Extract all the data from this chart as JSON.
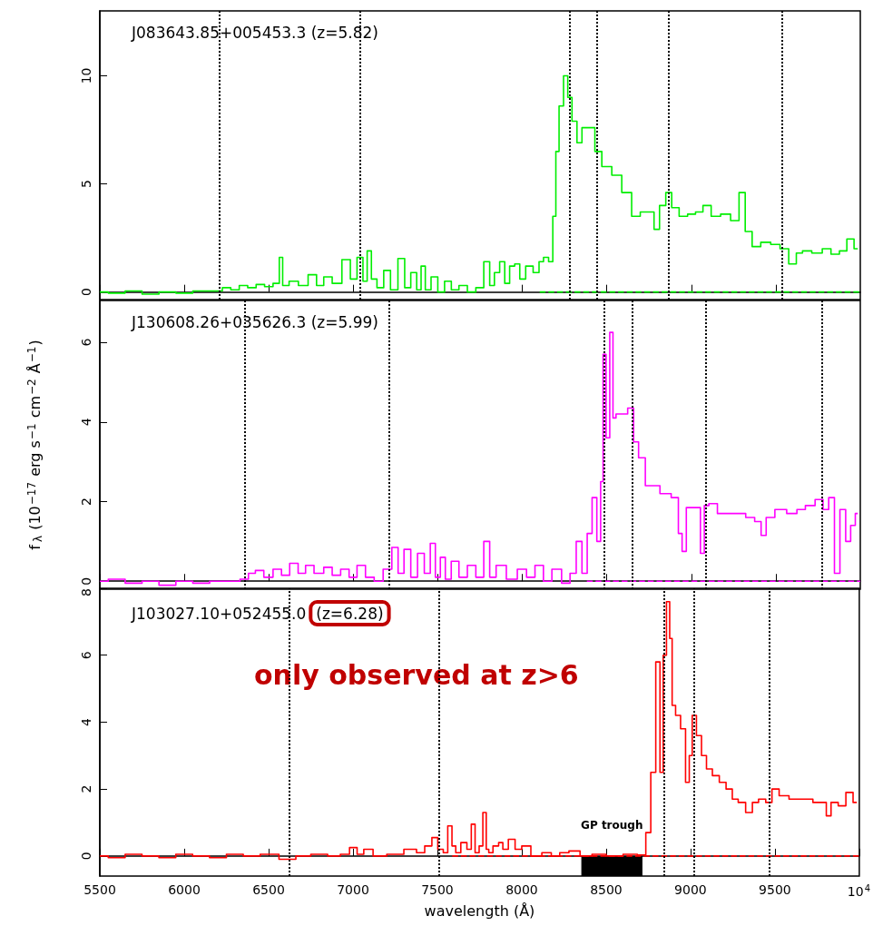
{
  "chart_data": [
    {
      "type": "step",
      "title": "J083643.85+005453.3 (z=5.82)",
      "xlim": [
        5500,
        10000
      ],
      "xticks": [
        5500,
        6000,
        6500,
        7000,
        7500,
        8000,
        8500,
        9000,
        9500
      ],
      "ylim": [
        -0.35,
        13
      ],
      "yticks": [
        0,
        5,
        10
      ],
      "tick_labels": "y",
      "series": [
        {
          "color": "#00ee00",
          "x": [
            5500,
            5600,
            5700,
            5800,
            5900,
            6000,
            6100,
            6200,
            6250,
            6300,
            6350,
            6400,
            6450,
            6500,
            6550,
            6574,
            6590,
            6650,
            6700,
            6765,
            6800,
            6850,
            6900,
            6965,
            7000,
            7044,
            7070,
            7094,
            7120,
            7160,
            7200,
            7240,
            7288,
            7320,
            7360,
            7390,
            7412,
            7440,
            7480,
            7520,
            7560,
            7600,
            7650,
            7700,
            7750,
            7794,
            7820,
            7850,
            7882,
            7910,
            7940,
            7970,
            8000,
            8040,
            8088,
            8110,
            8141,
            8170,
            8191,
            8206,
            8229,
            8259,
            8279,
            8309,
            8338,
            8368,
            8418,
            8441,
            8500,
            8559,
            8618,
            8676,
            8720,
            8765,
            8794,
            8830,
            8868,
            8900,
            8956,
            9000,
            9050,
            9088,
            9147,
            9200,
            9265,
            9300,
            9338,
            9382,
            9440,
            9500,
            9550,
            9603,
            9640,
            9676,
            9750,
            9800,
            9853,
            9900,
            9941,
            9985
          ],
          "values": [
            0.0,
            -0.05,
            0.05,
            -0.1,
            0.0,
            -0.05,
            0.05,
            0.05,
            0.2,
            0.1,
            0.3,
            0.2,
            0.35,
            0.25,
            0.4,
            1.6,
            0.3,
            0.5,
            0.3,
            0.8,
            0.3,
            0.7,
            0.4,
            1.5,
            0.6,
            1.6,
            0.5,
            1.9,
            0.6,
            0.2,
            1.0,
            0.1,
            1.55,
            0.2,
            0.9,
            0.1,
            1.2,
            0.1,
            0.7,
            0.0,
            0.5,
            0.1,
            0.3,
            0.0,
            0.2,
            1.4,
            0.3,
            0.9,
            1.4,
            0.4,
            1.2,
            1.3,
            0.6,
            1.2,
            0.9,
            1.4,
            1.6,
            1.4,
            3.5,
            6.5,
            8.6,
            10.0,
            9.0,
            7.9,
            6.9,
            7.6,
            7.6,
            6.5,
            5.8,
            5.4,
            4.6,
            3.5,
            3.7,
            3.7,
            2.9,
            4.0,
            4.6,
            3.9,
            3.5,
            3.6,
            3.7,
            4.0,
            3.5,
            3.6,
            3.3,
            4.6,
            2.8,
            2.1,
            2.3,
            2.2,
            2.0,
            1.3,
            1.8,
            1.9,
            1.8,
            2.0,
            1.75,
            1.9,
            2.45,
            2.0
          ]
        },
        {
          "type": "line",
          "color": "#00ee00",
          "line_style": "dashed",
          "x": [
            8103,
            10000
          ],
          "values": [
            0,
            0
          ]
        }
      ],
      "ref_lines": [
        {
          "axis": "x",
          "value": 6206,
          "label": null,
          "color": "#000000",
          "line_style": "dotted"
        },
        {
          "axis": "x",
          "value": 7038,
          "label": null,
          "color": "#000000",
          "line_style": "dotted"
        },
        {
          "axis": "x",
          "value": 8282,
          "label": null,
          "color": "#000000",
          "line_style": "dotted"
        },
        {
          "axis": "x",
          "value": 8444,
          "label": null,
          "color": "#000000",
          "line_style": "dotted"
        },
        {
          "axis": "x",
          "value": 8868,
          "label": null,
          "color": "#000000",
          "line_style": "dotted"
        },
        {
          "axis": "x",
          "value": 9535,
          "label": null,
          "color": "#000000",
          "line_style": "dotted"
        }
      ]
    },
    {
      "type": "step",
      "title": "J130608.26+035626.3 (z=5.99)",
      "ylabel": "f$_{λ}$ (10$^{−17}$ erg s$^{−1}$ cm$^{−2}$ Å$^{−1}$)",
      "xlim": [
        5500,
        10000
      ],
      "xticks": [
        5500,
        6000,
        6500,
        7000,
        7500,
        8000,
        8500,
        9000,
        9500
      ],
      "ylim": [
        -0.2,
        7.05
      ],
      "yticks": [
        0,
        2,
        4,
        6
      ],
      "tick_labels": "y",
      "series": [
        {
          "color": "#ff00ff",
          "x": [
            5500,
            5600,
            5700,
            5800,
            5900,
            6000,
            6100,
            6200,
            6300,
            6359,
            6400,
            6441,
            6500,
            6550,
            6600,
            6647,
            6700,
            6735,
            6800,
            6850,
            6900,
            6950,
            7000,
            7044,
            7100,
            7147,
            7206,
            7250,
            7280,
            7320,
            7360,
            7400,
            7440,
            7471,
            7500,
            7530,
            7559,
            7600,
            7650,
            7700,
            7750,
            7794,
            7820,
            7870,
            7941,
            8000,
            8050,
            8100,
            8150,
            8200,
            8265,
            8300,
            8338,
            8368,
            8400,
            8426,
            8456,
            8471,
            8485,
            8506,
            8529,
            8544,
            8565,
            8600,
            8647,
            8670,
            8706,
            8750,
            8779,
            8850,
            8912,
            8935,
            8956,
            8985,
            9044,
            9064,
            9090,
            9118,
            9191,
            9250,
            9294,
            9350,
            9400,
            9426,
            9460,
            9529,
            9600,
            9650,
            9700,
            9765,
            9794,
            9832,
            9862,
            9897,
            9930,
            9956,
            9985
          ],
          "values": [
            0.0,
            0.05,
            -0.05,
            0.0,
            -0.1,
            0.0,
            -0.05,
            0.0,
            0.0,
            0.05,
            0.2,
            0.27,
            0.1,
            0.3,
            0.15,
            0.45,
            0.2,
            0.4,
            0.2,
            0.35,
            0.15,
            0.3,
            0.1,
            0.4,
            0.1,
            0.0,
            0.3,
            0.85,
            0.2,
            0.8,
            0.1,
            0.7,
            0.2,
            0.95,
            0.1,
            0.6,
            0.05,
            0.5,
            0.1,
            0.4,
            0.1,
            1.0,
            0.1,
            0.4,
            0.05,
            0.3,
            0.1,
            0.4,
            0.0,
            0.3,
            -0.05,
            0.2,
            1.0,
            0.2,
            1.2,
            2.1,
            1.0,
            2.5,
            5.7,
            3.6,
            6.25,
            4.1,
            4.2,
            4.2,
            4.35,
            3.5,
            3.1,
            2.4,
            2.4,
            2.2,
            2.1,
            1.2,
            0.75,
            1.85,
            1.85,
            0.7,
            1.9,
            1.95,
            1.7,
            1.7,
            1.7,
            1.6,
            1.5,
            1.15,
            1.6,
            1.8,
            1.7,
            1.8,
            1.9,
            2.05,
            1.8,
            2.1,
            0.2,
            1.8,
            1.0,
            1.4,
            1.7
          ]
        },
        {
          "type": "line",
          "color": "#ff00ff",
          "line_style": "dashed",
          "x": [
            8382,
            10000
          ],
          "values": [
            0,
            0
          ]
        }
      ],
      "ref_lines": [
        {
          "axis": "x",
          "value": 6359,
          "label": null,
          "color": "#000000",
          "line_style": "dotted"
        },
        {
          "axis": "x",
          "value": 7212,
          "label": null,
          "color": "#000000",
          "line_style": "dotted"
        },
        {
          "axis": "x",
          "value": 8485,
          "label": null,
          "color": "#000000",
          "line_style": "dotted"
        },
        {
          "axis": "x",
          "value": 8653,
          "label": null,
          "color": "#000000",
          "line_style": "dotted"
        },
        {
          "axis": "x",
          "value": 9088,
          "label": null,
          "color": "#000000",
          "line_style": "dotted"
        },
        {
          "axis": "x",
          "value": 9773,
          "label": null,
          "color": "#000000",
          "line_style": "dotted"
        }
      ]
    },
    {
      "type": "step",
      "title": "J103027.10+052455.0",
      "subtitle": "(z=6.28)",
      "xlabel": "wavelength (Å)",
      "annotations": [
        "only observed at z>6"
      ],
      "xlim": [
        5500,
        10000
      ],
      "xticks": [
        5500,
        6000,
        6500,
        7000,
        7500,
        8000,
        8500,
        9000,
        9500,
        {
          "value": 10000,
          "label": "10$^{4}$"
        }
      ],
      "ylim": [
        -0.6,
        8
      ],
      "yticks": [
        0,
        2,
        4,
        6,
        8
      ],
      "series": [
        {
          "color": "#ff0000",
          "x": [
            5500,
            5600,
            5700,
            5800,
            5900,
            6000,
            6100,
            6200,
            6300,
            6400,
            6500,
            6623,
            6700,
            6800,
            6900,
            6950,
            7009,
            7040,
            7088,
            7150,
            7250,
            7353,
            7400,
            7450,
            7485,
            7520,
            7550,
            7573,
            7600,
            7618,
            7660,
            7690,
            7712,
            7735,
            7760,
            7779,
            7800,
            7809,
            7850,
            7876,
            7900,
            7941,
            7980,
            8020,
            8088,
            8150,
            8200,
            8250,
            8309,
            8382,
            8450,
            8550,
            8650,
            8720,
            8750,
            8779,
            8809,
            8829,
            8847,
            8868,
            8885,
            8897,
            8926,
            8956,
            8985,
            9000,
            9020,
            9050,
            9080,
            9109,
            9150,
            9191,
            9230,
            9265,
            9300,
            9353,
            9380,
            9426,
            9465,
            9500,
            9550,
            9617,
            9700,
            9750,
            9794,
            9815,
            9850,
            9900,
            9941,
            9985
          ],
          "values": [
            0.0,
            -0.05,
            0.05,
            0.0,
            -0.05,
            0.05,
            0.0,
            -0.05,
            0.05,
            0.0,
            0.05,
            -0.1,
            0.0,
            0.05,
            0.0,
            0.05,
            0.25,
            0.05,
            0.2,
            0.0,
            0.05,
            0.2,
            0.1,
            0.3,
            0.55,
            0.2,
            0.1,
            0.9,
            0.3,
            0.1,
            0.4,
            0.2,
            0.95,
            0.1,
            0.3,
            1.3,
            0.2,
            0.1,
            0.3,
            0.4,
            0.2,
            0.5,
            0.2,
            0.3,
            0.0,
            0.1,
            0.0,
            0.1,
            0.15,
            0.0,
            0.05,
            0.0,
            0.05,
            0.03,
            0.7,
            2.5,
            5.8,
            2.5,
            6.0,
            7.6,
            6.5,
            4.5,
            4.2,
            3.8,
            2.2,
            3.0,
            4.2,
            3.6,
            3.0,
            2.6,
            2.4,
            2.2,
            2.0,
            1.7,
            1.6,
            1.3,
            1.6,
            1.7,
            1.6,
            2.0,
            1.8,
            1.7,
            1.7,
            1.6,
            1.6,
            1.2,
            1.6,
            1.5,
            1.9,
            1.6
          ]
        },
        {
          "type": "line",
          "color": "#ff0000",
          "line_style": "dashed",
          "x": [
            7588,
            10000
          ],
          "values": [
            0,
            0
          ]
        }
      ],
      "ref_lines": [
        {
          "axis": "x",
          "value": 6623,
          "label": null,
          "color": "#000000",
          "line_style": "dotted"
        },
        {
          "axis": "x",
          "value": 7512,
          "label": null,
          "color": "#000000",
          "line_style": "dotted"
        },
        {
          "axis": "x",
          "value": 8841,
          "label": null,
          "color": "#000000",
          "line_style": "dotted"
        },
        {
          "axis": "x",
          "value": 9018,
          "label": null,
          "color": "#000000",
          "line_style": "dotted"
        },
        {
          "axis": "x",
          "value": 9465,
          "label": null,
          "color": "#000000",
          "line_style": "dotted"
        }
      ],
      "bands": [
        {
          "axis": "x",
          "from": 8353,
          "to": 8715,
          "label": "GP trough",
          "color": "#000000"
        }
      ]
    }
  ]
}
